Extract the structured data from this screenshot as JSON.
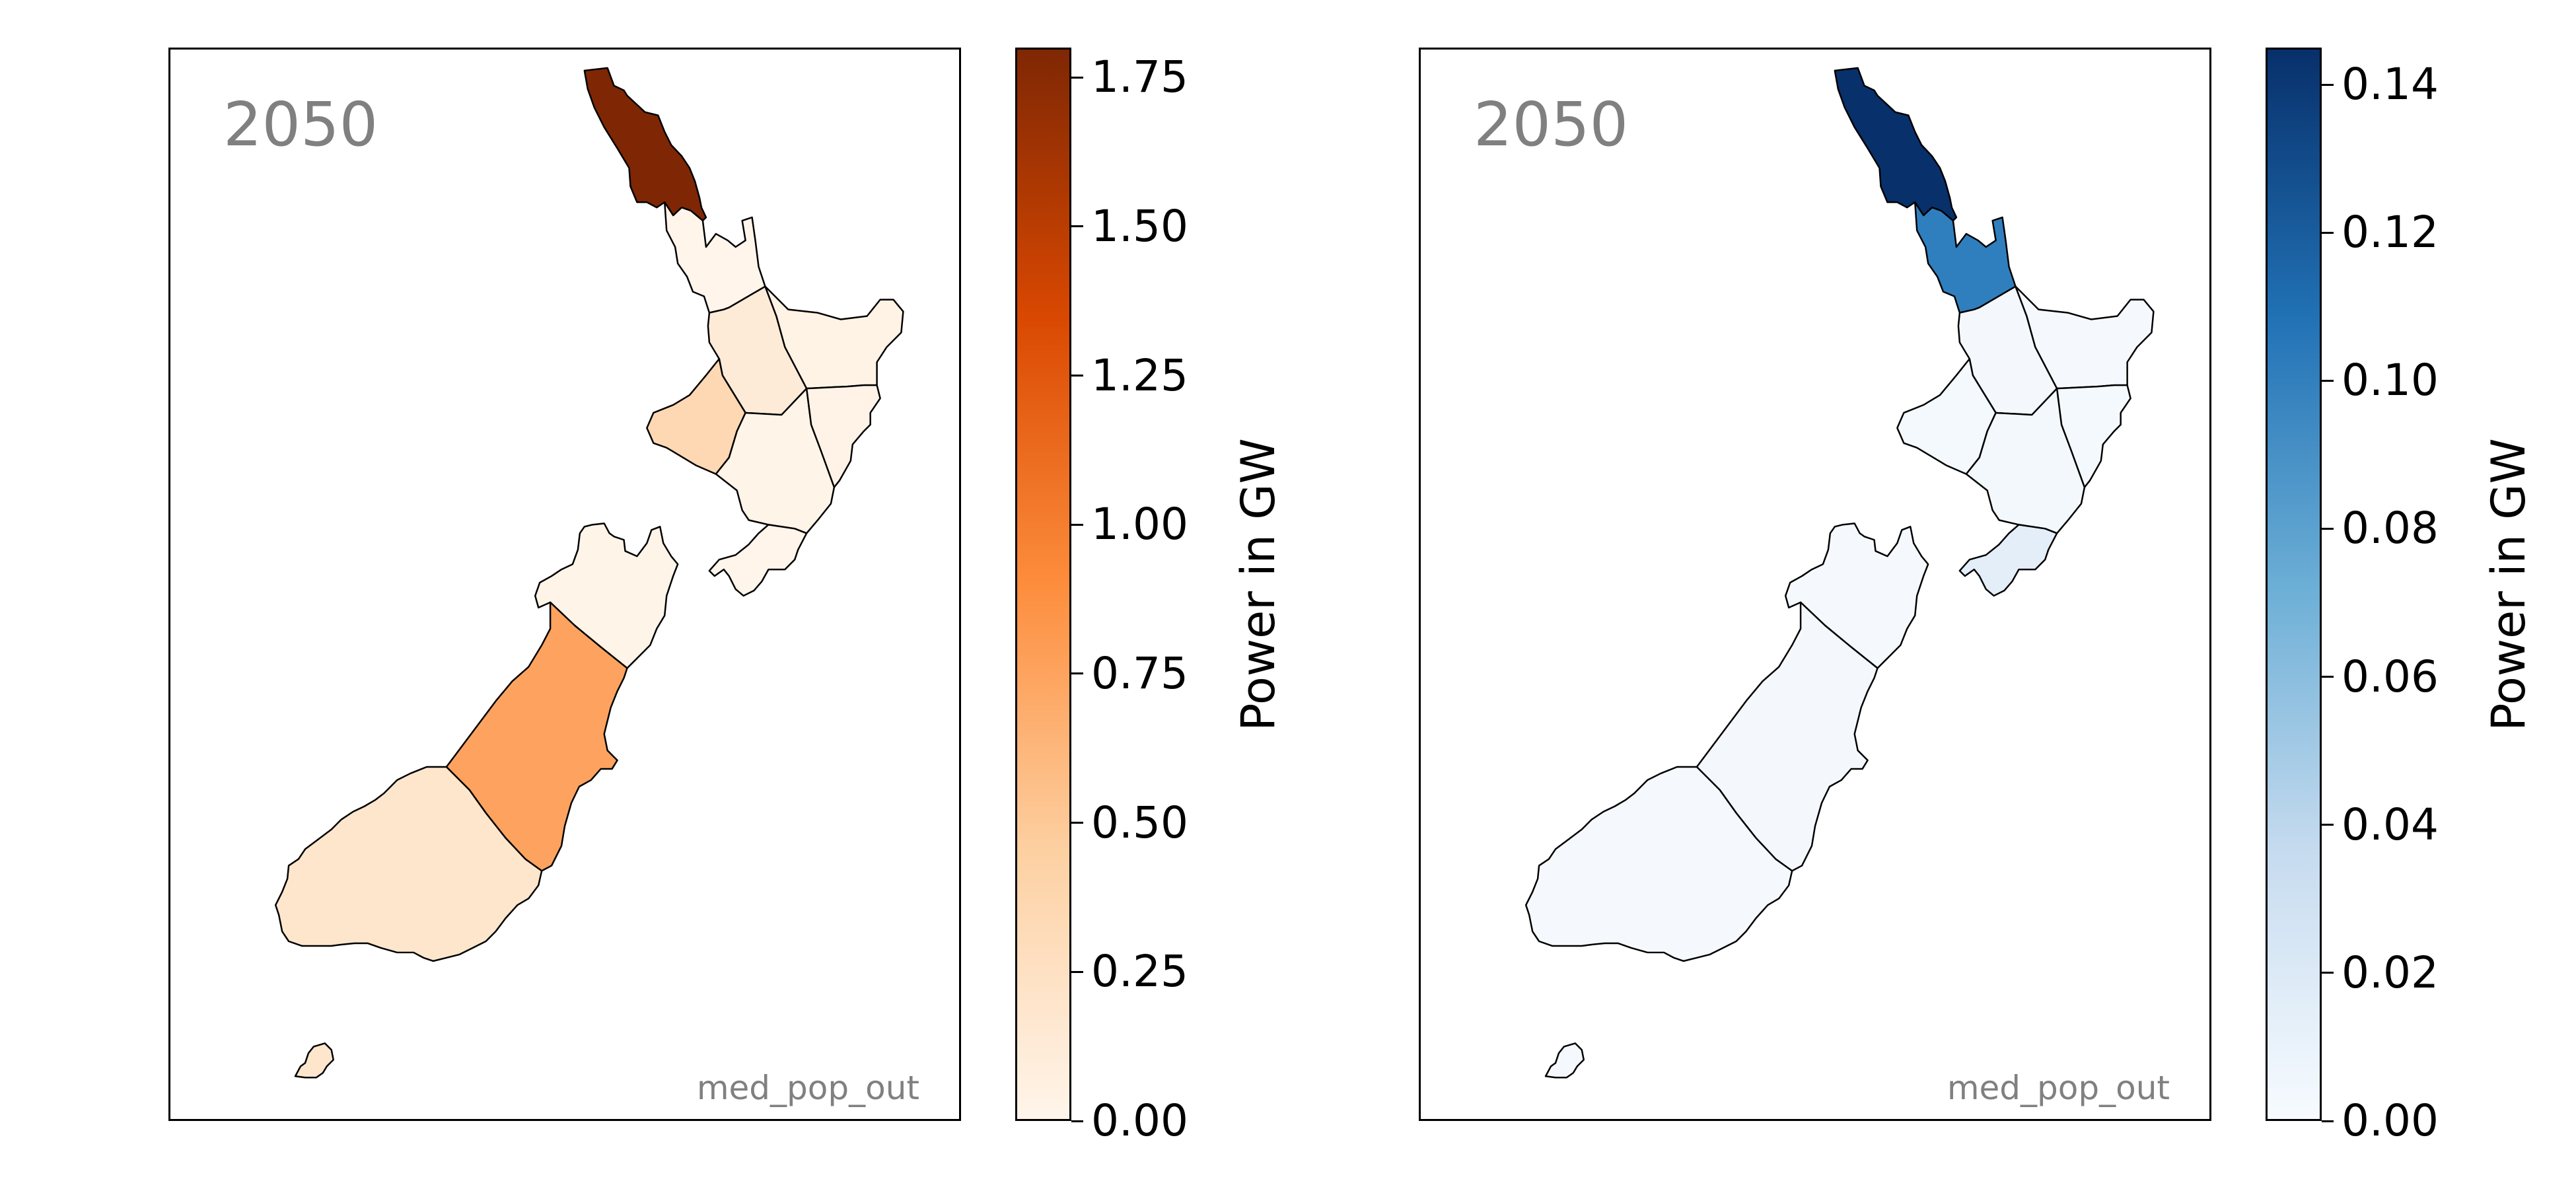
{
  "figure": {
    "panels": [
      {
        "year_label": "2050",
        "scenario_label": "med_pop_out",
        "colorbar": {
          "title": "Power in GW",
          "ticks": [
            "0.00",
            "0.25",
            "0.50",
            "0.75",
            "1.00",
            "1.25",
            "1.50",
            "1.75"
          ],
          "range": [
            0,
            1.8
          ],
          "colormap": [
            "#fff5eb",
            "#fdd0a2",
            "#fd8d3c",
            "#d94801",
            "#7f2704"
          ]
        },
        "region_colors": {
          "northland": "#7f2704",
          "auckland": "#fff5eb",
          "waikato": "#fdebd8",
          "bay-of-plenty": "#fff3e6",
          "taranaki": "#fdd8b3",
          "central": "#fff4e8",
          "hawkes-bay": "#fff3e7",
          "wellington": "#fff5ea",
          "nelson-tasman": "#fff4e8",
          "canterbury": "#fda35f",
          "otago-southland": "#fee6cd",
          "stewart-island": "#fee6cd"
        }
      },
      {
        "year_label": "2050",
        "scenario_label": "med_pop_out",
        "colorbar": {
          "title": "Power in GW",
          "ticks": [
            "0.00",
            "0.02",
            "0.04",
            "0.06",
            "0.08",
            "0.10",
            "0.12",
            "0.14"
          ],
          "range": [
            0,
            0.145
          ],
          "colormap": [
            "#f7fbff",
            "#c6dbef",
            "#6baed6",
            "#2171b5",
            "#08306b"
          ]
        },
        "region_colors": {
          "northland": "#08306b",
          "auckland": "#2f7fbf",
          "waikato": "#f4f8fd",
          "bay-of-plenty": "#f5f9fe",
          "taranaki": "#f4f9fd",
          "central": "#f3f8fd",
          "hawkes-bay": "#f4f9fe",
          "wellington": "#e4eef9",
          "nelson-tasman": "#f5f9fe",
          "canterbury": "#f4f8fd",
          "otago-southland": "#f5f9fe",
          "stewart-island": "#f5f9fe"
        }
      }
    ]
  }
}
